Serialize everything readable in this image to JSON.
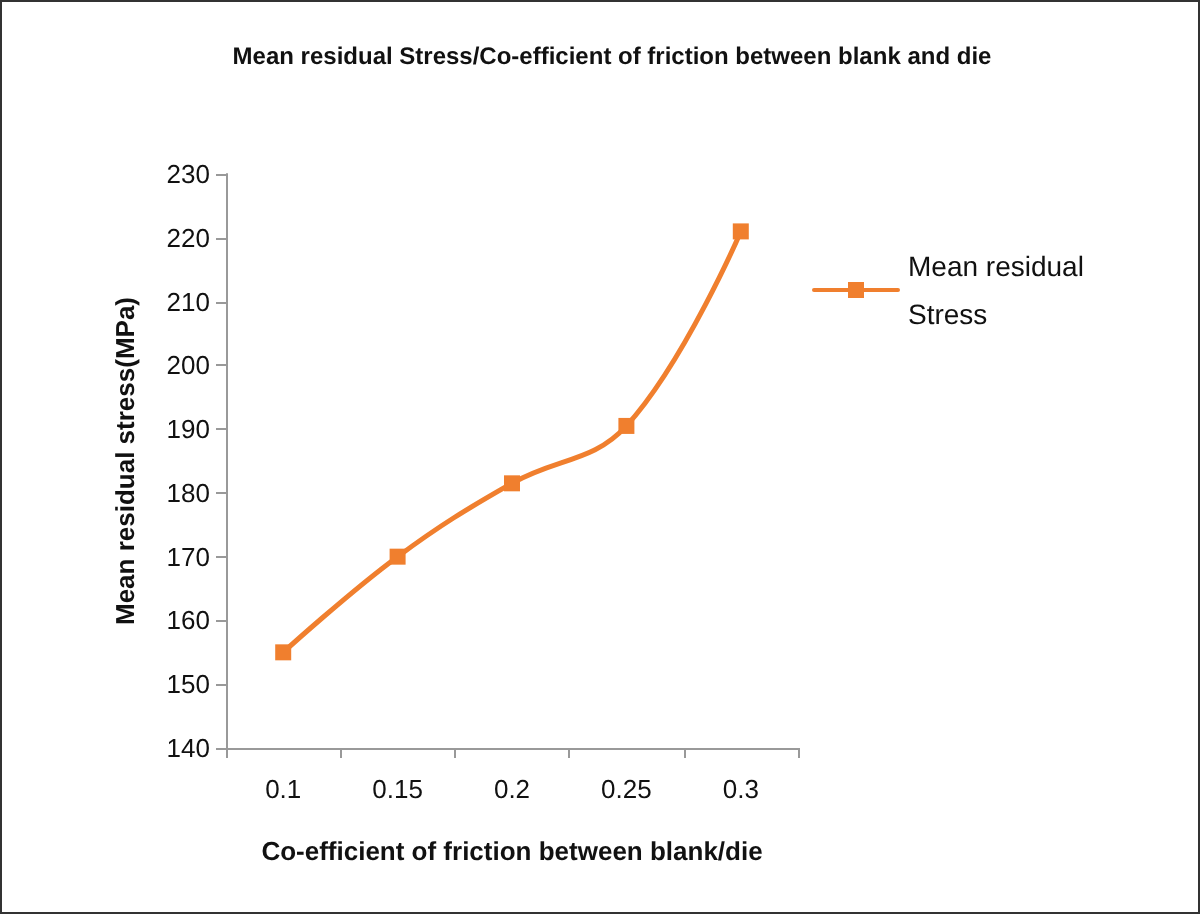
{
  "chart_data": {
    "type": "line",
    "title": "Mean residual Stress/Co-efficient of friction between blank and die",
    "xlabel": "Co-efficient of friction between blank/die",
    "ylabel": "Mean residual stress(MPa)",
    "categories": [
      "0.1",
      "0.15",
      "0.2",
      "0.25",
      "0.3"
    ],
    "series": [
      {
        "name": "Mean residual Stress",
        "color": "#f07f2e",
        "values": [
          155,
          170,
          181.5,
          190.5,
          221
        ]
      }
    ],
    "ylim": [
      140,
      230
    ],
    "yticks": [
      140,
      150,
      160,
      170,
      180,
      190,
      200,
      210,
      220,
      230
    ],
    "grid": false,
    "legend": "right",
    "marker": "square",
    "line_style": "solid"
  }
}
